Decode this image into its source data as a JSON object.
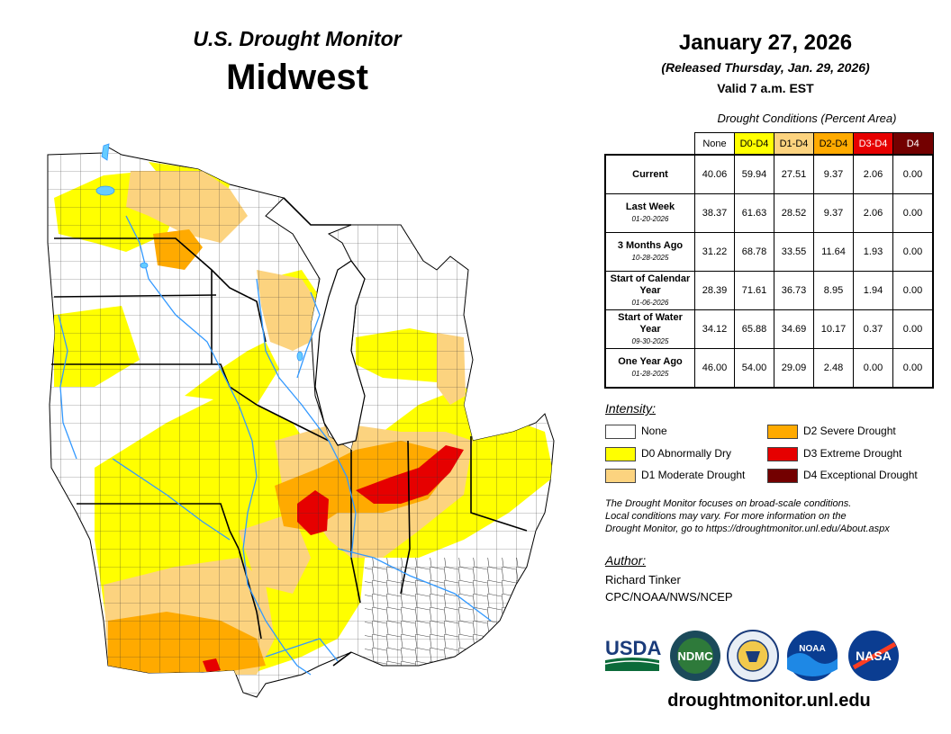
{
  "header": {
    "supertitle": "U.S. Drought Monitor",
    "region": "Midwest"
  },
  "dates": {
    "map_date": "January 27, 2026",
    "released": "(Released Thursday, Jan. 29, 2026)",
    "valid": "Valid 7 a.m. EST"
  },
  "table": {
    "caption": "Drought Conditions (Percent Area)",
    "columns": [
      "None",
      "D0-D4",
      "D1-D4",
      "D2-D4",
      "D3-D4",
      "D4"
    ],
    "column_colors": [
      "#ffffff",
      "#ffff00",
      "#fcd37f",
      "#ffaa00",
      "#e60000",
      "#730000"
    ],
    "rows": [
      {
        "label": "Current",
        "sublabel": "",
        "values": [
          "40.06",
          "59.94",
          "27.51",
          "9.37",
          "2.06",
          "0.00"
        ]
      },
      {
        "label": "Last Week",
        "sublabel": "01-20-2026",
        "values": [
          "38.37",
          "61.63",
          "28.52",
          "9.37",
          "2.06",
          "0.00"
        ]
      },
      {
        "label": "3 Months Ago",
        "sublabel": "10-28-2025",
        "values": [
          "31.22",
          "68.78",
          "33.55",
          "11.64",
          "1.93",
          "0.00"
        ]
      },
      {
        "label": "Start of Calendar Year",
        "sublabel": "01-06-2026",
        "values": [
          "28.39",
          "71.61",
          "36.73",
          "8.95",
          "1.94",
          "0.00"
        ]
      },
      {
        "label": "Start of Water Year",
        "sublabel": "09-30-2025",
        "values": [
          "34.12",
          "65.88",
          "34.69",
          "10.17",
          "0.37",
          "0.00"
        ]
      },
      {
        "label": "One Year Ago",
        "sublabel": "01-28-2025",
        "values": [
          "46.00",
          "54.00",
          "29.09",
          "2.48",
          "0.00",
          "0.00"
        ]
      }
    ]
  },
  "legend": {
    "heading": "Intensity:",
    "items": [
      {
        "label": "None",
        "color": "#ffffff"
      },
      {
        "label": "D0 Abnormally Dry",
        "color": "#ffff00"
      },
      {
        "label": "D1 Moderate Drought",
        "color": "#fcd37f"
      },
      {
        "label": "D2 Severe Drought",
        "color": "#ffaa00"
      },
      {
        "label": "D3 Extreme Drought",
        "color": "#e60000"
      },
      {
        "label": "D4 Exceptional Drought",
        "color": "#730000"
      }
    ]
  },
  "note": {
    "line1": "The Drought Monitor focuses on broad-scale conditions.",
    "line2": "Local conditions may vary. For more information on the",
    "line3": "Drought Monitor, go to https://droughtmonitor.unl.edu/About.aspx"
  },
  "author": {
    "heading": "Author:",
    "name": "Richard Tinker",
    "org": "CPC/NOAA/NWS/NCEP"
  },
  "logos": {
    "usda": "USDA",
    "ndmc": "NDMC",
    "noaa": "NOAA",
    "nasa": "NASA"
  },
  "footer": {
    "website": "droughtmonitor.unl.edu"
  },
  "colors": {
    "river": "#3399ff",
    "lake": "#66ccff"
  }
}
